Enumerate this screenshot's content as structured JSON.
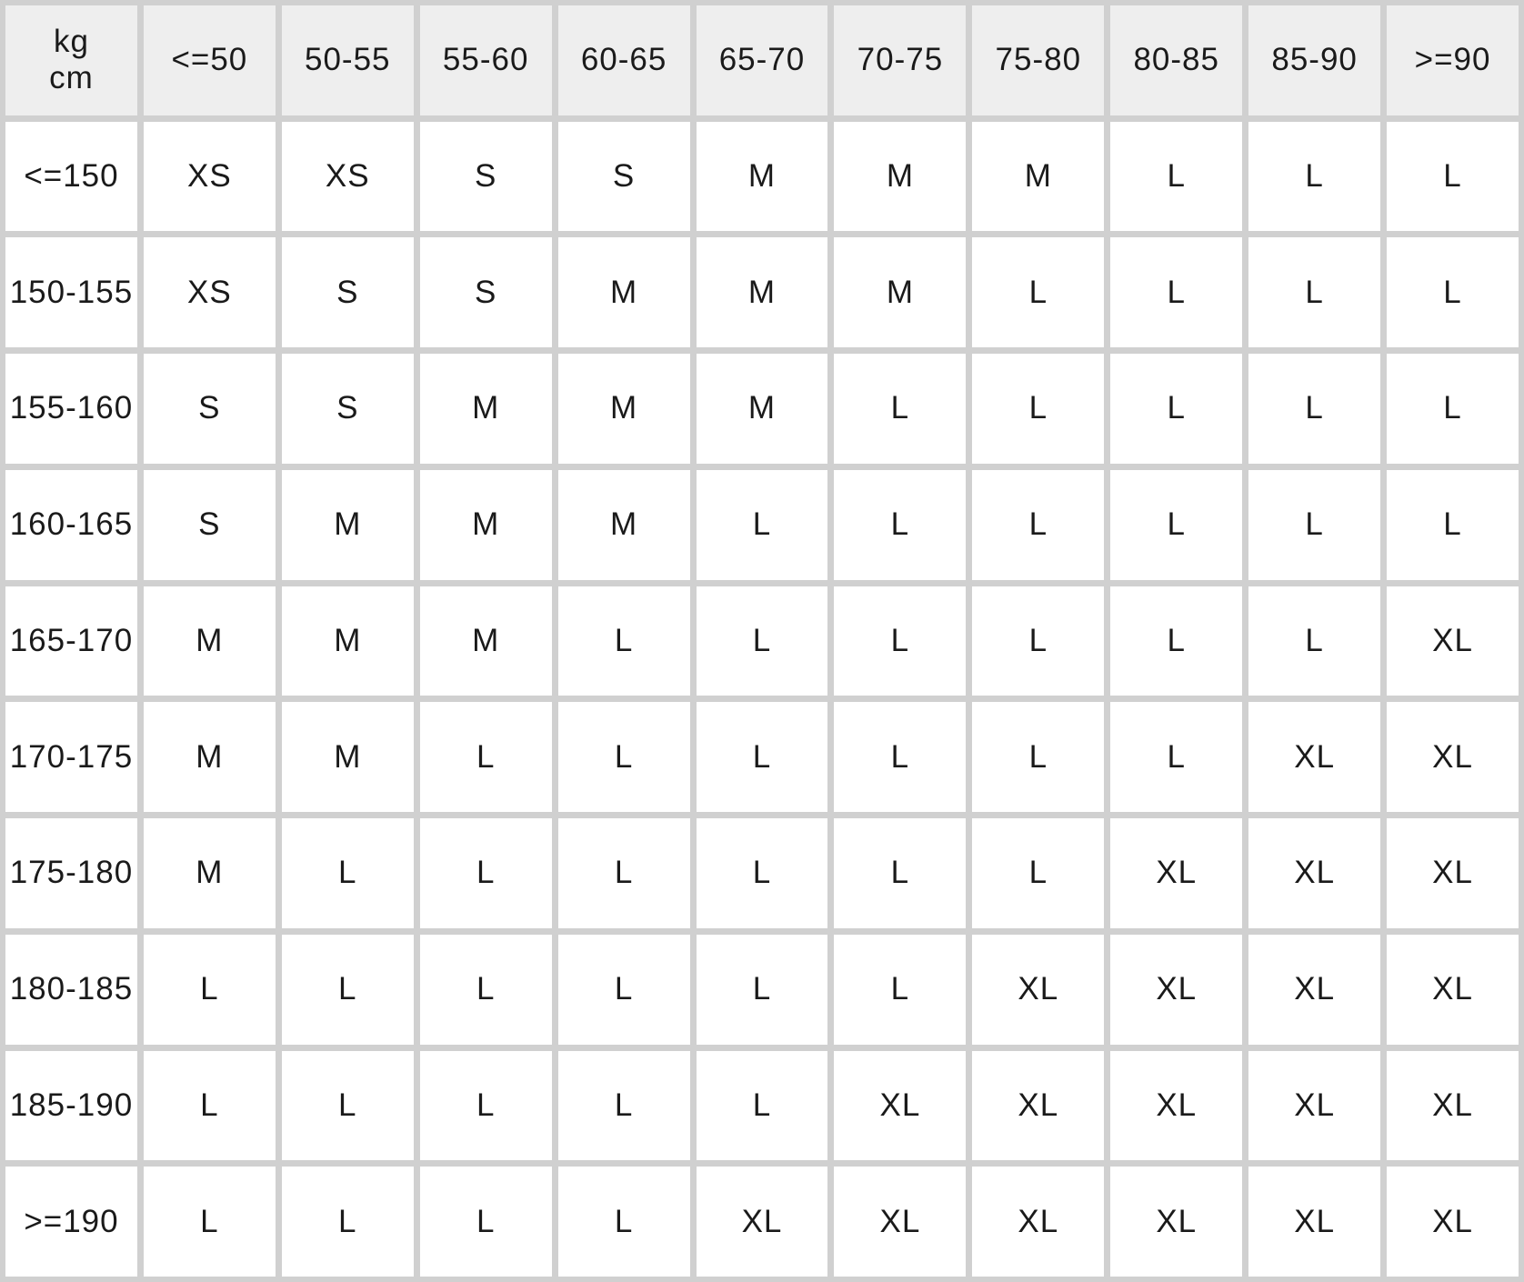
{
  "corner": {
    "top": "kg",
    "bottom": "cm"
  },
  "weight_columns": [
    "<=50",
    "50-55",
    "55-60",
    "60-65",
    "65-70",
    "70-75",
    "75-80",
    "80-85",
    "85-90",
    ">=90"
  ],
  "rows": [
    {
      "height": "<=150",
      "sizes": [
        "XS",
        "XS",
        "S",
        "S",
        "M",
        "M",
        "M",
        "L",
        "L",
        "L"
      ]
    },
    {
      "height": "150-155",
      "sizes": [
        "XS",
        "S",
        "S",
        "M",
        "M",
        "M",
        "L",
        "L",
        "L",
        "L"
      ]
    },
    {
      "height": "155-160",
      "sizes": [
        "S",
        "S",
        "M",
        "M",
        "M",
        "L",
        "L",
        "L",
        "L",
        "L"
      ]
    },
    {
      "height": "160-165",
      "sizes": [
        "S",
        "M",
        "M",
        "M",
        "L",
        "L",
        "L",
        "L",
        "L",
        "L"
      ]
    },
    {
      "height": "165-170",
      "sizes": [
        "M",
        "M",
        "M",
        "L",
        "L",
        "L",
        "L",
        "L",
        "L",
        "XL"
      ]
    },
    {
      "height": "170-175",
      "sizes": [
        "M",
        "M",
        "L",
        "L",
        "L",
        "L",
        "L",
        "L",
        "XL",
        "XL"
      ]
    },
    {
      "height": "175-180",
      "sizes": [
        "M",
        "L",
        "L",
        "L",
        "L",
        "L",
        "L",
        "XL",
        "XL",
        "XL"
      ]
    },
    {
      "height": "180-185",
      "sizes": [
        "L",
        "L",
        "L",
        "L",
        "L",
        "L",
        "XL",
        "XL",
        "XL",
        "XL"
      ]
    },
    {
      "height": "185-190",
      "sizes": [
        "L",
        "L",
        "L",
        "L",
        "L",
        "XL",
        "XL",
        "XL",
        "XL",
        "XL"
      ]
    },
    {
      "height": ">=190",
      "sizes": [
        "L",
        "L",
        "L",
        "L",
        "XL",
        "XL",
        "XL",
        "XL",
        "XL",
        "XL"
      ]
    }
  ]
}
